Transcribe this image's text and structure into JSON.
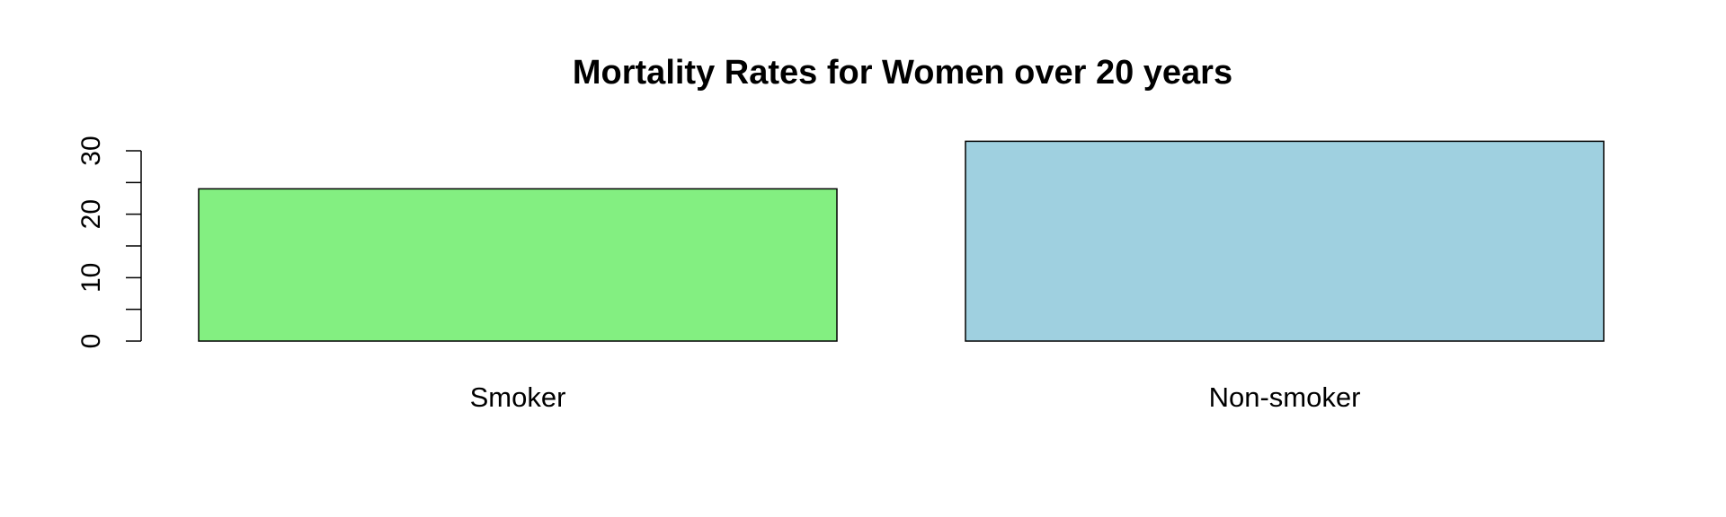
{
  "chart_data": {
    "type": "bar",
    "title": "Mortality Rates for Women over 20 years",
    "xlabel": "",
    "ylabel": "",
    "categories": [
      "Smoker",
      "Non-smoker"
    ],
    "values": [
      24,
      31.5
    ],
    "colors": [
      "#83ef81",
      "#9fd0e0"
    ],
    "bar_border_color": "#000000",
    "ylim": [
      0,
      30
    ],
    "yticks": [
      0,
      10,
      20,
      30
    ],
    "grid": false,
    "legend": "none"
  }
}
